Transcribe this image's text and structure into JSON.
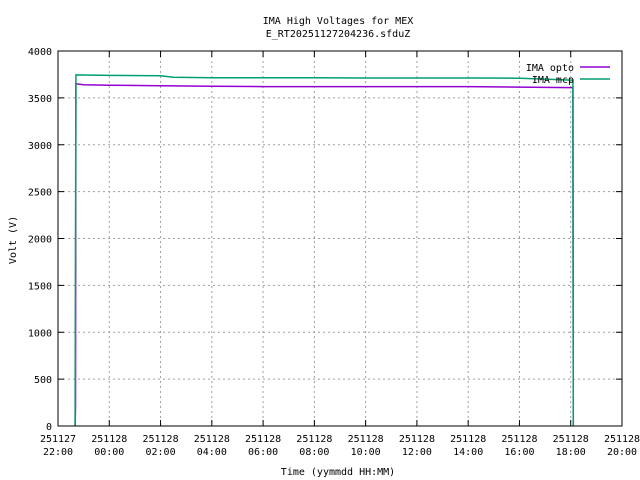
{
  "chart_data": {
    "type": "line",
    "title": "IMA High Voltages for MEX",
    "subtitle": "E_RT20251127204236.sfduZ",
    "xlabel": "Time (yymmdd HH:MM)",
    "ylabel": "Volt (V)",
    "ylim": [
      0,
      4000
    ],
    "yticks": [
      0,
      500,
      1000,
      1500,
      2000,
      2500,
      3000,
      3500,
      4000
    ],
    "xlim": [
      "2025-11-27 22:00",
      "2025-11-28 20:00"
    ],
    "xticks": [
      {
        "date": "251127",
        "time": "22:00"
      },
      {
        "date": "251128",
        "time": "00:00"
      },
      {
        "date": "251128",
        "time": "02:00"
      },
      {
        "date": "251128",
        "time": "04:00"
      },
      {
        "date": "251128",
        "time": "06:00"
      },
      {
        "date": "251128",
        "time": "08:00"
      },
      {
        "date": "251128",
        "time": "10:00"
      },
      {
        "date": "251128",
        "time": "12:00"
      },
      {
        "date": "251128",
        "time": "14:00"
      },
      {
        "date": "251128",
        "time": "16:00"
      },
      {
        "date": "251128",
        "time": "18:00"
      },
      {
        "date": "251128",
        "time": "20:00"
      }
    ],
    "grid": true,
    "legend_position": "top-right",
    "series": [
      {
        "name": "IMA opto",
        "color": "#9400d3",
        "points": [
          [
            "2025-11-27 22:40",
            0
          ],
          [
            "2025-11-27 22:41",
            200
          ],
          [
            "2025-11-27 22:42",
            3650
          ],
          [
            "2025-11-27 23:00",
            3640
          ],
          [
            "2025-11-28 00:00",
            3635
          ],
          [
            "2025-11-28 02:00",
            3630
          ],
          [
            "2025-11-28 04:00",
            3625
          ],
          [
            "2025-11-28 06:00",
            3620
          ],
          [
            "2025-11-28 08:00",
            3620
          ],
          [
            "2025-11-28 10:00",
            3620
          ],
          [
            "2025-11-28 12:00",
            3620
          ],
          [
            "2025-11-28 14:00",
            3620
          ],
          [
            "2025-11-28 16:00",
            3615
          ],
          [
            "2025-11-28 18:00",
            3610
          ],
          [
            "2025-11-28 18:05",
            3610
          ],
          [
            "2025-11-28 18:06",
            0
          ]
        ]
      },
      {
        "name": "IMA mcp",
        "color": "#009e73",
        "points": [
          [
            "2025-11-27 22:40",
            0
          ],
          [
            "2025-11-27 22:42",
            3745
          ],
          [
            "2025-11-28 00:00",
            3740
          ],
          [
            "2025-11-28 02:00",
            3735
          ],
          [
            "2025-11-28 02:30",
            3720
          ],
          [
            "2025-11-28 04:00",
            3715
          ],
          [
            "2025-11-28 06:00",
            3715
          ],
          [
            "2025-11-28 08:00",
            3715
          ],
          [
            "2025-11-28 10:00",
            3712
          ],
          [
            "2025-11-28 12:00",
            3712
          ],
          [
            "2025-11-28 14:00",
            3712
          ],
          [
            "2025-11-28 16:00",
            3710
          ],
          [
            "2025-11-28 17:00",
            3700
          ],
          [
            "2025-11-28 18:00",
            3690
          ],
          [
            "2025-11-28 18:05",
            3690
          ],
          [
            "2025-11-28 18:06",
            0
          ]
        ]
      }
    ]
  }
}
